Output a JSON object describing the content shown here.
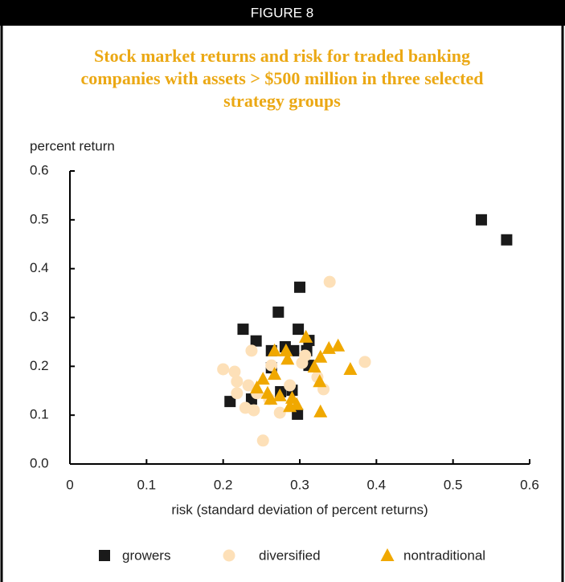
{
  "header": "FIGURE 8",
  "chart_data": {
    "type": "scatter",
    "title": "Stock market returns and risk for traded banking companies with assets > $500 million in three selected strategy groups",
    "ylabel": "percent return",
    "xlabel": "risk (standard deviation of percent returns)",
    "xlim": [
      0,
      0.6
    ],
    "ylim": [
      0,
      0.6
    ],
    "xticks": [
      0,
      0.1,
      0.2,
      0.3,
      0.4,
      0.5,
      0.6
    ],
    "yticks": [
      {
        "value": 0,
        "label": "0.0"
      },
      0.1,
      0.2,
      0.3,
      0.4,
      0.5,
      0.6
    ],
    "series": [
      {
        "name": "growers",
        "color": "#1a1a1a",
        "marker": "square",
        "x": [
          0.537,
          0.57,
          0.272,
          0.3,
          0.226,
          0.298,
          0.243,
          0.312,
          0.281,
          0.309,
          0.263,
          0.292,
          0.312,
          0.263,
          0.275,
          0.29,
          0.237,
          0.209,
          0.297
        ],
        "values": [
          0.5,
          0.459,
          0.311,
          0.362,
          0.276,
          0.276,
          0.252,
          0.253,
          0.24,
          0.232,
          0.232,
          0.232,
          0.202,
          0.197,
          0.148,
          0.151,
          0.133,
          0.128,
          0.102
        ]
      },
      {
        "name": "diversified",
        "color": "#fde0b8",
        "marker": "circle",
        "x": [
          0.339,
          0.2,
          0.215,
          0.218,
          0.237,
          0.263,
          0.307,
          0.303,
          0.385,
          0.331,
          0.218,
          0.233,
          0.244,
          0.229,
          0.24,
          0.274,
          0.252,
          0.26,
          0.287,
          0.323
        ],
        "values": [
          0.373,
          0.194,
          0.189,
          0.169,
          0.232,
          0.202,
          0.222,
          0.207,
          0.209,
          0.153,
          0.145,
          0.161,
          0.145,
          0.115,
          0.11,
          0.105,
          0.048,
          0.133,
          0.161,
          0.178
        ]
      },
      {
        "name": "nontraditional",
        "color": "#f0a800",
        "marker": "triangle",
        "x": [
          0.308,
          0.267,
          0.282,
          0.284,
          0.35,
          0.338,
          0.327,
          0.319,
          0.366,
          0.267,
          0.252,
          0.244,
          0.258,
          0.274,
          0.29,
          0.262,
          0.326,
          0.296,
          0.287,
          0.327
        ],
        "values": [
          0.26,
          0.232,
          0.232,
          0.215,
          0.242,
          0.237,
          0.219,
          0.199,
          0.194,
          0.184,
          0.174,
          0.156,
          0.145,
          0.14,
          0.135,
          0.133,
          0.169,
          0.122,
          0.118,
          0.107
        ]
      }
    ]
  }
}
